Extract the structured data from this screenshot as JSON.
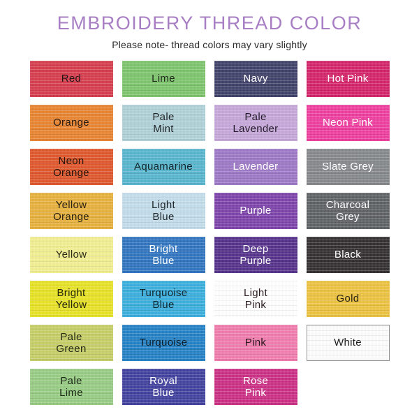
{
  "header": {
    "title": "EMBROIDERY THREAD COLOR",
    "title_color": "#a87ec4",
    "subtitle": "Please note- thread colors may vary slightly"
  },
  "grid": {
    "columns": 4,
    "rows": 8
  },
  "swatches": [
    {
      "label": "Red",
      "color": "#d63c4c",
      "text": "#231414"
    },
    {
      "label": "Lime",
      "color": "#7dc46c",
      "text": "#1f2a1a"
    },
    {
      "label": "Navy",
      "color": "#404169",
      "text": "#ffffff"
    },
    {
      "label": "Hot Pink",
      "color": "#d42369",
      "text": "#ffffff"
    },
    {
      "label": "Orange",
      "color": "#e8832f",
      "text": "#2a1c10"
    },
    {
      "label": "Pale\nMint",
      "color": "#afd0d8",
      "text": "#1f2526"
    },
    {
      "label": "Pale\nLavender",
      "color": "#c5a7d9",
      "text": "#241b2b"
    },
    {
      "label": "Neon Pink",
      "color": "#ee3d9f",
      "text": "#ffffff"
    },
    {
      "label": "Neon\nOrange",
      "color": "#df562b",
      "text": "#26130a"
    },
    {
      "label": "Aquamarine",
      "color": "#56b5cd",
      "text": "#12272c"
    },
    {
      "label": "Lavender",
      "color": "#9c77c6",
      "text": "#ffffff"
    },
    {
      "label": "Slate Grey",
      "color": "#85888b",
      "text": "#ffffff"
    },
    {
      "label": "Yellow\nOrange",
      "color": "#e7b03b",
      "text": "#2a2210"
    },
    {
      "label": "Light\nBlue",
      "color": "#c3dcea",
      "text": "#1e262b"
    },
    {
      "label": "Purple",
      "color": "#7c42aa",
      "text": "#ffffff"
    },
    {
      "label": "Charcoal\nGrey",
      "color": "#5f6265",
      "text": "#ffffff"
    },
    {
      "label": "Yellow",
      "color": "#f1ee90",
      "text": "#2a2a18"
    },
    {
      "label": "Bright\nBlue",
      "color": "#2f74c0",
      "text": "#ffffff"
    },
    {
      "label": "Deep\nPurple",
      "color": "#55318b",
      "text": "#ffffff"
    },
    {
      "label": "Black",
      "color": "#332f31",
      "text": "#ffffff"
    },
    {
      "label": "Bright\nYellow",
      "color": "#e7e224",
      "text": "#262608"
    },
    {
      "label": "Turquoise\nBlue",
      "color": "#39aedc",
      "text": "#102730"
    },
    {
      "label": "Light\nPink",
      "color": "#f3b1c8, ",
      "text": "#2b1c22"
    },
    {
      "label": "Gold",
      "color": "#ecc23f",
      "text": "#2b230d"
    },
    {
      "label": "Pale\nGreen",
      "color": "#c5ce66",
      "text": "#272a14"
    },
    {
      "label": "Turquoise",
      "color": "#2381c5",
      "text": "#0c1f2c"
    },
    {
      "label": "Pink",
      "color": "#f07bac",
      "text": "#2b1620"
    },
    {
      "label": "White",
      "color": "#fdfdfd",
      "text": "#1f1f1f",
      "border": "#8f8f8f"
    },
    {
      "label": "Pale\nLime",
      "color": "#97cc83",
      "text": "#1c2a17"
    },
    {
      "label": "Royal\nBlue",
      "color": "#41409e",
      "text": "#ffffff"
    },
    {
      "label": "Rose\nPink",
      "color": "#cb2e84",
      "text": "#ffffff"
    }
  ]
}
